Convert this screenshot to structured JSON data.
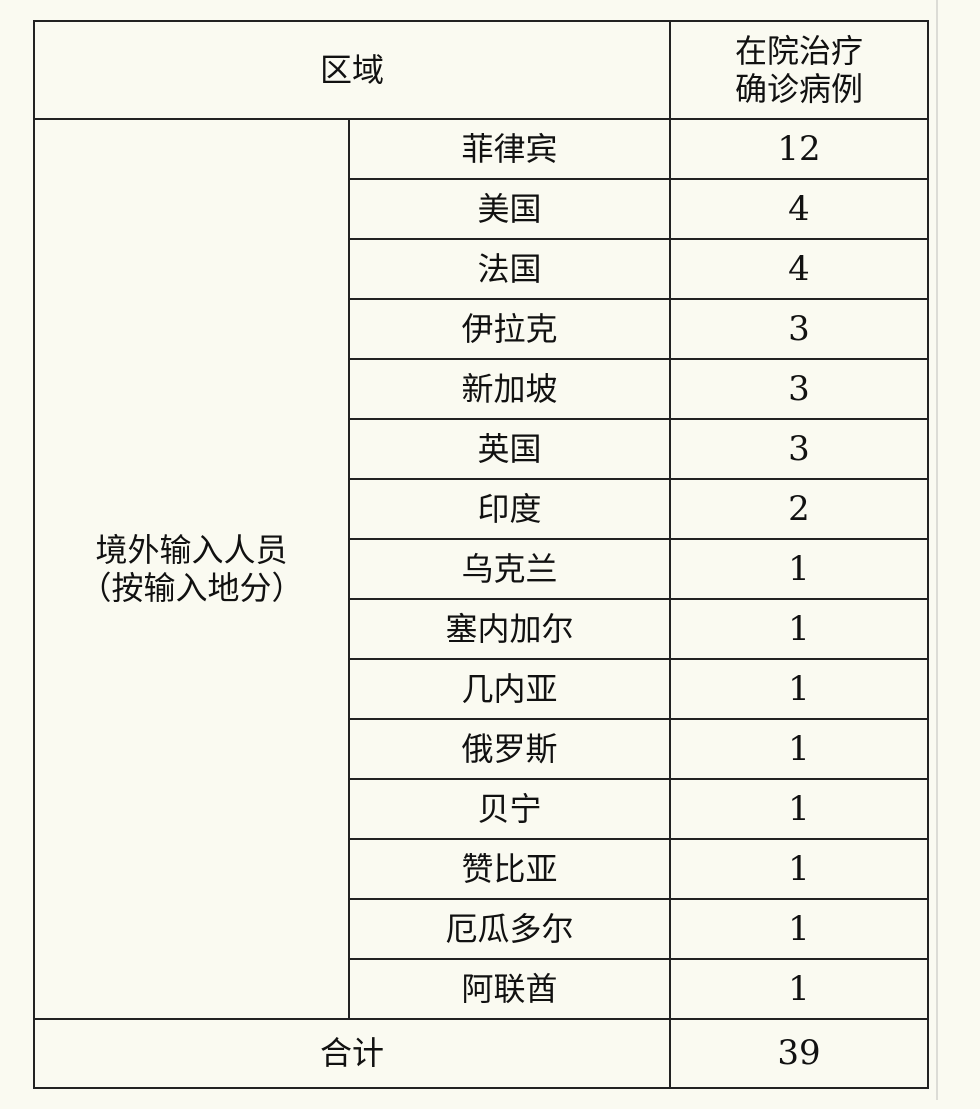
{
  "header": {
    "region": "区域",
    "cases_line1": "在院治疗",
    "cases_line2": "确诊病例"
  },
  "group": {
    "line1": "境外输入人员",
    "line2": "（按输入地分）"
  },
  "rows": [
    {
      "country": "菲律宾",
      "count": "12"
    },
    {
      "country": "美国",
      "count": "4"
    },
    {
      "country": "法国",
      "count": "4"
    },
    {
      "country": "伊拉克",
      "count": "3"
    },
    {
      "country": "新加坡",
      "count": "3"
    },
    {
      "country": "英国",
      "count": "3"
    },
    {
      "country": "印度",
      "count": "2"
    },
    {
      "country": "乌克兰",
      "count": "1"
    },
    {
      "country": "塞内加尔",
      "count": "1"
    },
    {
      "country": "几内亚",
      "count": "1"
    },
    {
      "country": "俄罗斯",
      "count": "1"
    },
    {
      "country": "贝宁",
      "count": "1"
    },
    {
      "country": "赞比亚",
      "count": "1"
    },
    {
      "country": "厄瓜多尔",
      "count": "1"
    },
    {
      "country": "阿联酋",
      "count": "1"
    }
  ],
  "total": {
    "label": "合计",
    "count": "39"
  }
}
